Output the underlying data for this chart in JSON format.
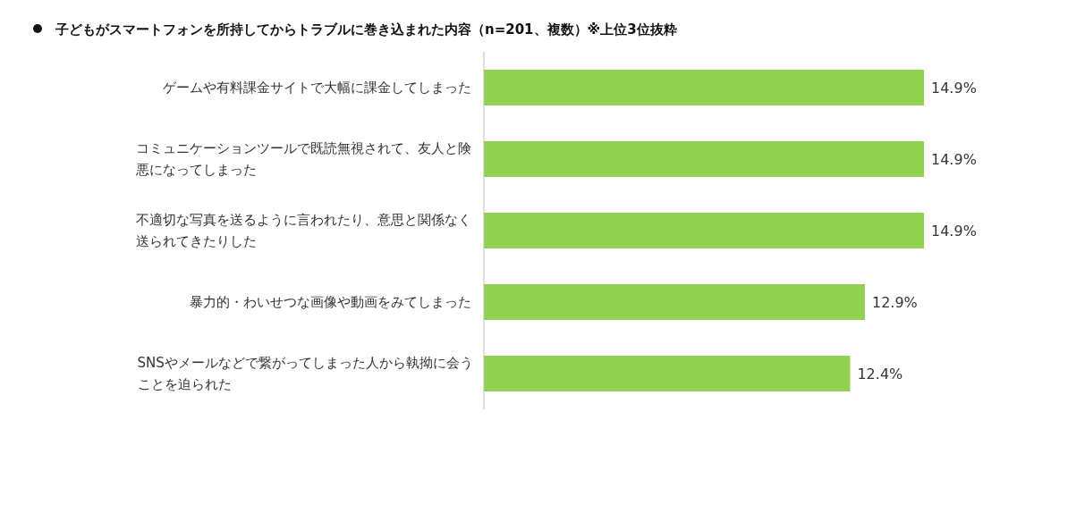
{
  "chart_data": {
    "type": "bar",
    "orientation": "horizontal",
    "title": "子どもがスマートフォンを所持してからトラブルに巻き込まれた内容（n=201、複数）※上位3位抜粋",
    "categories": [
      "ゲームや有料課金サイトで大幅に課金してしまった",
      "コミュニケーションツールで既読無視されて、友人と険悪になってしまった",
      "不適切な写真を送るように言われたり、意思と関係なく送られてきたりした",
      "暴力的・わいせつな画像や動画をみてしまった",
      "SNSやメールなどで繋がってしまった人から執拗に会うことを迫られた"
    ],
    "values": [
      14.9,
      14.9,
      14.9,
      12.9,
      12.4
    ],
    "value_labels": [
      "14.9%",
      "14.9%",
      "14.9%",
      "12.9%",
      "12.4%"
    ],
    "color": "#92d050"
  }
}
